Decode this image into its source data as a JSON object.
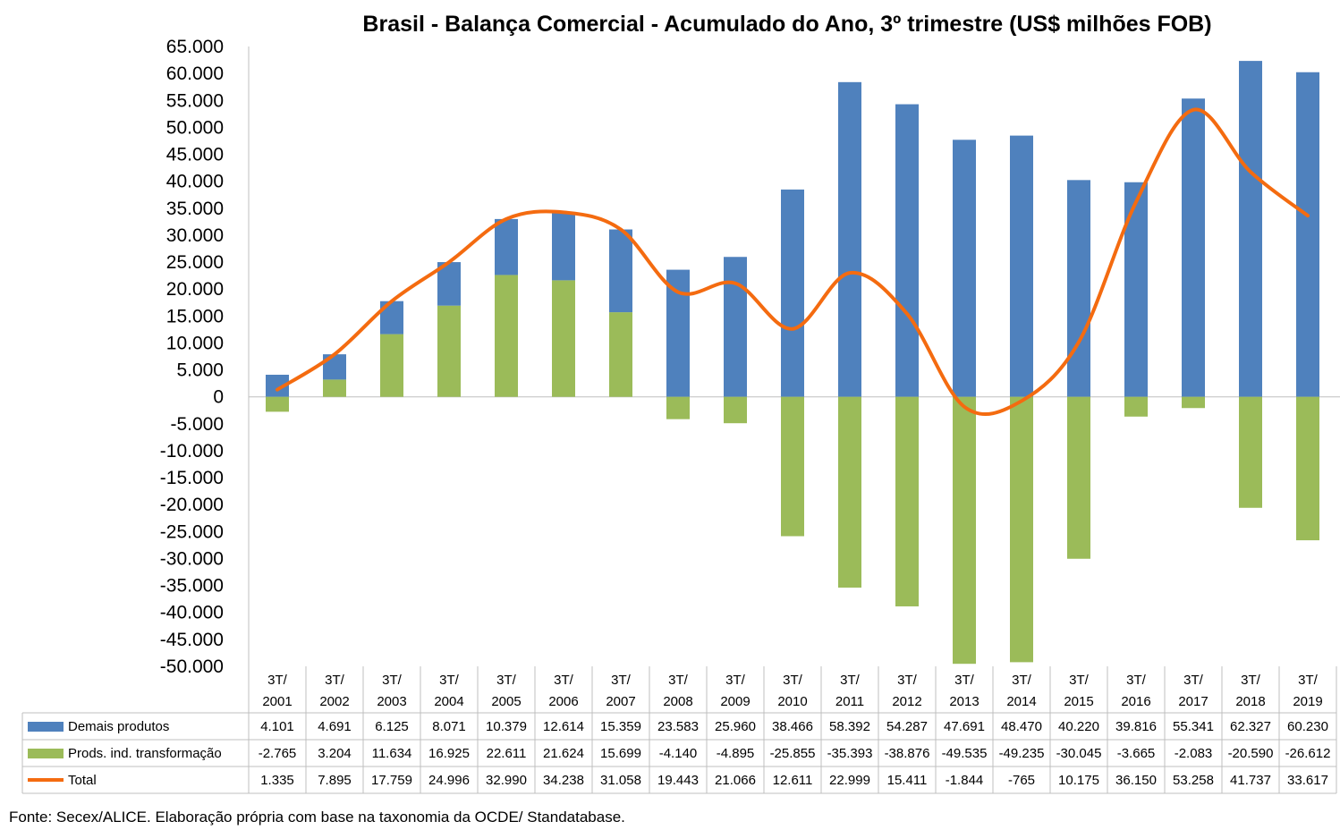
{
  "chart_data": {
    "type": "bar",
    "title": "Brasil - Balança Comercial - Acumulado do Ano, 3º trimestre (US$ milhões FOB)",
    "categories": [
      [
        "3T/",
        "2001"
      ],
      [
        "3T/",
        "2002"
      ],
      [
        "3T/",
        "2003"
      ],
      [
        "3T/",
        "2004"
      ],
      [
        "3T/",
        "2005"
      ],
      [
        "3T/",
        "2006"
      ],
      [
        "3T/",
        "2007"
      ],
      [
        "3T/",
        "2008"
      ],
      [
        "3T/",
        "2009"
      ],
      [
        "3T/",
        "2010"
      ],
      [
        "3T/",
        "2011"
      ],
      [
        "3T/",
        "2012"
      ],
      [
        "3T/",
        "2013"
      ],
      [
        "3T/",
        "2014"
      ],
      [
        "3T/",
        "2015"
      ],
      [
        "3T/",
        "2016"
      ],
      [
        "3T/",
        "2017"
      ],
      [
        "3T/",
        "2018"
      ],
      [
        "3T/",
        "2019"
      ]
    ],
    "ylim": [
      -50000,
      65000
    ],
    "ystep": 5000,
    "yticks": [
      "65.000",
      "60.000",
      "55.000",
      "50.000",
      "45.000",
      "40.000",
      "35.000",
      "30.000",
      "25.000",
      "20.000",
      "15.000",
      "10.000",
      "5.000",
      "0",
      "-5.000",
      "-10.000",
      "-15.000",
      "-20.000",
      "-25.000",
      "-30.000",
      "-35.000",
      "-40.000",
      "-45.000",
      "-50.000"
    ],
    "series": [
      {
        "name": "Demais produtos",
        "type": "bar",
        "color": "#4f81bd",
        "values": [
          4101,
          4691,
          6125,
          8071,
          10379,
          12614,
          15359,
          23583,
          25960,
          38466,
          58392,
          54287,
          47691,
          48470,
          40220,
          39816,
          55341,
          62327,
          60230
        ],
        "labels": [
          "4.101",
          "4.691",
          "6.125",
          "8.071",
          "10.379",
          "12.614",
          "15.359",
          "23.583",
          "25.960",
          "38.466",
          "58.392",
          "54.287",
          "47.691",
          "48.470",
          "40.220",
          "39.816",
          "55.341",
          "62.327",
          "60.230"
        ]
      },
      {
        "name": "Prods. ind. transformação",
        "type": "bar",
        "color": "#9bbb59",
        "values": [
          -2765,
          3204,
          11634,
          16925,
          22611,
          21624,
          15699,
          -4140,
          -4895,
          -25855,
          -35393,
          -38876,
          -49535,
          -49235,
          -30045,
          -3665,
          -2083,
          -20590,
          -26612
        ],
        "labels": [
          "-2.765",
          "3.204",
          "11.634",
          "16.925",
          "22.611",
          "21.624",
          "15.699",
          "-4.140",
          "-4.895",
          "-25.855",
          "-35.393",
          "-38.876",
          "-49.535",
          "-49.235",
          "-30.045",
          "-3.665",
          "-2.083",
          "-20.590",
          "-26.612"
        ]
      },
      {
        "name": "Total",
        "type": "line",
        "color": "#f46b10",
        "values": [
          1335,
          7895,
          17759,
          24996,
          32990,
          34238,
          31058,
          19443,
          21066,
          12611,
          22999,
          15411,
          -1844,
          -765,
          10175,
          36150,
          53258,
          41737,
          33617
        ],
        "labels": [
          "1.335",
          "7.895",
          "17.759",
          "24.996",
          "32.990",
          "34.238",
          "31.058",
          "19.443",
          "21.066",
          "12.611",
          "22.999",
          "15.411",
          "-1.844",
          "-765",
          "10.175",
          "36.150",
          "53.258",
          "41.737",
          "33.617"
        ]
      }
    ],
    "data_table": true,
    "legend": "table-rows"
  },
  "source_note": "Fonte: Secex/ALICE. Elaboração própria com base na taxonomia da OCDE/ Standatabase."
}
